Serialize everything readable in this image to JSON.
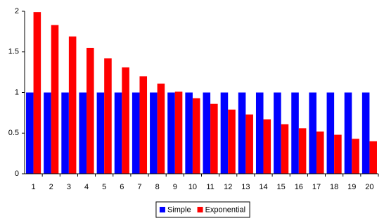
{
  "chart_data": {
    "type": "bar",
    "categories": [
      "1",
      "2",
      "3",
      "4",
      "5",
      "6",
      "7",
      "8",
      "9",
      "10",
      "11",
      "12",
      "13",
      "14",
      "15",
      "16",
      "17",
      "18",
      "19",
      "20"
    ],
    "series": [
      {
        "name": "Simple",
        "color": "#0000ff",
        "values": [
          1,
          1,
          1,
          1,
          1,
          1,
          1,
          1,
          1,
          1,
          1,
          1,
          1,
          1,
          1,
          1,
          1,
          1,
          1,
          1
        ]
      },
      {
        "name": "Exponential",
        "color": "#ff0000",
        "values": [
          1.99,
          1.83,
          1.69,
          1.55,
          1.42,
          1.31,
          1.2,
          1.11,
          1.01,
          0.93,
          0.86,
          0.79,
          0.73,
          0.67,
          0.61,
          0.56,
          0.52,
          0.48,
          0.43,
          0.4
        ]
      }
    ],
    "ylim": [
      0,
      2
    ],
    "yticks": [
      0,
      0.5,
      1,
      1.5,
      2
    ],
    "grid": false,
    "legend": "bottom"
  }
}
